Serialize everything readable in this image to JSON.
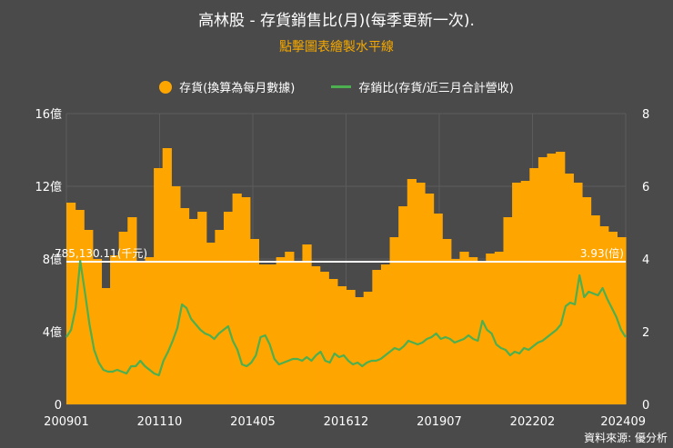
{
  "chart_data": {
    "type": "bar+line",
    "title": "高林股 - 存貨銷售比(月)(每季更新一次).",
    "subtitle": "點擊圖表繪製水平線",
    "source": "資料來源: 優分析",
    "legend": [
      "存貨(換算為每月數據)",
      "存銷比(存貨/近三月合計營收)"
    ],
    "x_ticks": [
      "200901",
      "201110",
      "201405",
      "201612",
      "201907",
      "202202",
      "202409"
    ],
    "y_left": {
      "ticks": [
        "0",
        "4億",
        "8億",
        "12億",
        "16億"
      ],
      "min": 0,
      "max": 16
    },
    "y_right": {
      "ticks": [
        "0",
        "2",
        "4",
        "6",
        "8"
      ],
      "min": 0,
      "max": 8
    },
    "horizontal_line": {
      "left_label": "785,130.11(千元)",
      "right_label": "3.93(倍)",
      "value_left": 7.85,
      "value_right": 3.93
    },
    "series": [
      {
        "name": "存貨(換算為每月數據)",
        "type": "bar",
        "unit": "億",
        "values": [
          11.1,
          10.7,
          9.6,
          8.0,
          6.4,
          8.2,
          9.5,
          10.3,
          7.9,
          8.1,
          13.0,
          14.1,
          12.0,
          10.8,
          10.2,
          10.6,
          8.9,
          9.6,
          10.6,
          11.6,
          11.4,
          9.1,
          7.7,
          7.7,
          8.1,
          8.4,
          7.9,
          8.8,
          7.6,
          7.3,
          6.9,
          6.5,
          6.3,
          5.9,
          6.2,
          7.4,
          7.7,
          9.2,
          10.9,
          12.4,
          12.2,
          11.6,
          10.5,
          9.1,
          8.0,
          8.4,
          8.1,
          7.9,
          8.3,
          8.4,
          10.3,
          12.2,
          12.3,
          13.0,
          13.6,
          13.8,
          13.9,
          12.7,
          12.2,
          11.4,
          10.4,
          9.8,
          9.5,
          9.2
        ]
      },
      {
        "name": "存銷比(存貨/近三月合計營收)",
        "type": "line",
        "unit": "倍",
        "values": [
          1.85,
          2.05,
          2.65,
          3.95,
          3.1,
          2.2,
          1.5,
          1.15,
          0.95,
          0.9,
          0.9,
          0.95,
          0.9,
          0.85,
          1.05,
          1.05,
          1.2,
          1.05,
          0.95,
          0.85,
          0.8,
          1.2,
          1.45,
          1.75,
          2.1,
          2.75,
          2.65,
          2.35,
          2.2,
          2.05,
          1.95,
          1.9,
          1.8,
          1.95,
          2.05,
          2.15,
          1.75,
          1.5,
          1.1,
          1.05,
          1.15,
          1.35,
          1.85,
          1.9,
          1.65,
          1.25,
          1.1,
          1.15,
          1.2,
          1.25,
          1.25,
          1.2,
          1.3,
          1.2,
          1.35,
          1.45,
          1.2,
          1.15,
          1.4,
          1.3,
          1.35,
          1.2,
          1.1,
          1.15,
          1.05,
          1.15,
          1.2,
          1.2,
          1.25,
          1.35,
          1.45,
          1.55,
          1.5,
          1.6,
          1.75,
          1.7,
          1.65,
          1.7,
          1.8,
          1.85,
          1.95,
          1.8,
          1.85,
          1.8,
          1.7,
          1.75,
          1.8,
          1.9,
          1.8,
          1.75,
          2.3,
          2.05,
          1.95,
          1.65,
          1.55,
          1.5,
          1.35,
          1.45,
          1.4,
          1.55,
          1.5,
          1.6,
          1.7,
          1.75,
          1.85,
          1.95,
          2.05,
          2.2,
          2.7,
          2.8,
          2.75,
          3.55,
          2.95,
          3.1,
          3.05,
          3.0,
          3.2,
          2.9,
          2.65,
          2.4,
          2.05,
          1.85
        ]
      }
    ]
  }
}
